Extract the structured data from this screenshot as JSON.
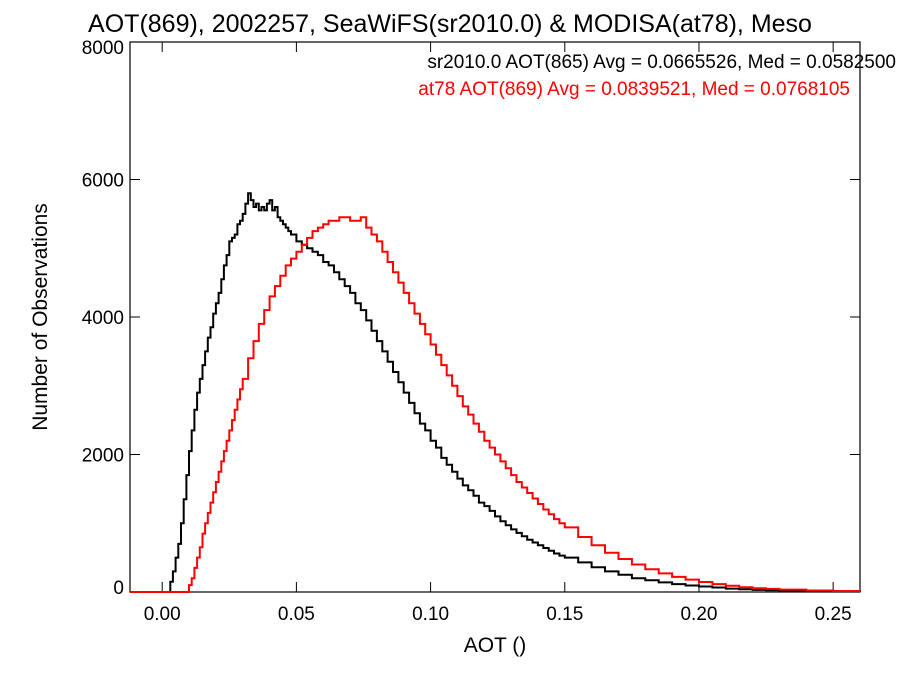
{
  "chart_data": {
    "type": "line",
    "title": "AOT(869), 2002257, SeaWiFS(sr2010.0) & MODISA(at78), Meso",
    "xlabel": "AOT ()",
    "ylabel": "Number of Observations",
    "xlim": [
      -0.012,
      0.26
    ],
    "ylim": [
      0,
      8000
    ],
    "x_ticks": [
      0.0,
      0.05,
      0.1,
      0.15,
      0.2,
      0.25
    ],
    "x_tick_labels": [
      "0.00",
      "0.05",
      "0.10",
      "0.15",
      "0.20",
      "0.25"
    ],
    "y_ticks": [
      0,
      2000,
      4000,
      6000,
      8000
    ],
    "y_tick_labels": [
      "0",
      "2000",
      "4000",
      "6000",
      "8000"
    ],
    "grid": false,
    "legend_position": "top-right",
    "annotations": [
      {
        "text": "sr2010.0 AOT(865) Avg = 0.0665526, Med = 0.0582500",
        "color": "#000000"
      },
      {
        "text": "at78 AOT(869) Avg = 0.0839521, Med = 0.0768105",
        "color": "#ff0000"
      }
    ],
    "step": true,
    "series": [
      {
        "color": "#000000",
        "points": [
          [
            -0.012,
            0
          ],
          [
            0.0,
            0
          ],
          [
            0.002,
            0
          ],
          [
            0.003,
            150
          ],
          [
            0.004,
            300
          ],
          [
            0.005,
            500
          ],
          [
            0.006,
            700
          ],
          [
            0.007,
            1000
          ],
          [
            0.008,
            1350
          ],
          [
            0.009,
            1700
          ],
          [
            0.01,
            2050
          ],
          [
            0.011,
            2350
          ],
          [
            0.012,
            2650
          ],
          [
            0.013,
            2900
          ],
          [
            0.014,
            3100
          ],
          [
            0.015,
            3300
          ],
          [
            0.016,
            3500
          ],
          [
            0.017,
            3700
          ],
          [
            0.018,
            3850
          ],
          [
            0.019,
            4050
          ],
          [
            0.02,
            4200
          ],
          [
            0.021,
            4350
          ],
          [
            0.022,
            4550
          ],
          [
            0.023,
            4750
          ],
          [
            0.024,
            4900
          ],
          [
            0.025,
            5100
          ],
          [
            0.026,
            5150
          ],
          [
            0.027,
            5200
          ],
          [
            0.028,
            5350
          ],
          [
            0.029,
            5400
          ],
          [
            0.03,
            5500
          ],
          [
            0.031,
            5650
          ],
          [
            0.032,
            5800
          ],
          [
            0.033,
            5700
          ],
          [
            0.034,
            5600
          ],
          [
            0.035,
            5650
          ],
          [
            0.036,
            5550
          ],
          [
            0.037,
            5600
          ],
          [
            0.038,
            5550
          ],
          [
            0.039,
            5650
          ],
          [
            0.04,
            5700
          ],
          [
            0.041,
            5550
          ],
          [
            0.042,
            5600
          ],
          [
            0.043,
            5450
          ],
          [
            0.044,
            5400
          ],
          [
            0.045,
            5350
          ],
          [
            0.046,
            5300
          ],
          [
            0.047,
            5250
          ],
          [
            0.048,
            5200
          ],
          [
            0.05,
            5100
          ],
          [
            0.052,
            5050
          ],
          [
            0.054,
            5000
          ],
          [
            0.056,
            4950
          ],
          [
            0.058,
            4900
          ],
          [
            0.06,
            4800
          ],
          [
            0.062,
            4750
          ],
          [
            0.064,
            4650
          ],
          [
            0.066,
            4550
          ],
          [
            0.068,
            4450
          ],
          [
            0.07,
            4350
          ],
          [
            0.072,
            4200
          ],
          [
            0.074,
            4100
          ],
          [
            0.076,
            3950
          ],
          [
            0.078,
            3800
          ],
          [
            0.08,
            3650
          ],
          [
            0.082,
            3500
          ],
          [
            0.084,
            3350
          ],
          [
            0.086,
            3200
          ],
          [
            0.088,
            3050
          ],
          [
            0.09,
            2900
          ],
          [
            0.092,
            2750
          ],
          [
            0.094,
            2600
          ],
          [
            0.096,
            2450
          ],
          [
            0.098,
            2350
          ],
          [
            0.1,
            2200
          ],
          [
            0.102,
            2100
          ],
          [
            0.104,
            1950
          ],
          [
            0.106,
            1850
          ],
          [
            0.108,
            1750
          ],
          [
            0.11,
            1650
          ],
          [
            0.112,
            1550
          ],
          [
            0.114,
            1480
          ],
          [
            0.116,
            1400
          ],
          [
            0.118,
            1300
          ],
          [
            0.12,
            1250
          ],
          [
            0.122,
            1180
          ],
          [
            0.124,
            1100
          ],
          [
            0.126,
            1030
          ],
          [
            0.128,
            970
          ],
          [
            0.13,
            910
          ],
          [
            0.132,
            860
          ],
          [
            0.134,
            810
          ],
          [
            0.136,
            760
          ],
          [
            0.138,
            720
          ],
          [
            0.14,
            680
          ],
          [
            0.142,
            640
          ],
          [
            0.144,
            600
          ],
          [
            0.146,
            560
          ],
          [
            0.148,
            530
          ],
          [
            0.15,
            500
          ],
          [
            0.155,
            430
          ],
          [
            0.16,
            360
          ],
          [
            0.165,
            300
          ],
          [
            0.17,
            250
          ],
          [
            0.175,
            200
          ],
          [
            0.18,
            170
          ],
          [
            0.185,
            140
          ],
          [
            0.19,
            115
          ],
          [
            0.195,
            95
          ],
          [
            0.2,
            80
          ],
          [
            0.205,
            65
          ],
          [
            0.21,
            50
          ],
          [
            0.215,
            40
          ],
          [
            0.22,
            30
          ],
          [
            0.225,
            25
          ],
          [
            0.23,
            20
          ],
          [
            0.24,
            12
          ],
          [
            0.25,
            8
          ],
          [
            0.26,
            5
          ]
        ]
      },
      {
        "color": "#ff0000",
        "points": [
          [
            -0.012,
            0
          ],
          [
            0.0,
            0
          ],
          [
            0.009,
            0
          ],
          [
            0.01,
            100
          ],
          [
            0.011,
            200
          ],
          [
            0.012,
            350
          ],
          [
            0.013,
            500
          ],
          [
            0.014,
            650
          ],
          [
            0.015,
            850
          ],
          [
            0.016,
            1000
          ],
          [
            0.017,
            1150
          ],
          [
            0.018,
            1300
          ],
          [
            0.019,
            1450
          ],
          [
            0.02,
            1600
          ],
          [
            0.021,
            1750
          ],
          [
            0.022,
            1900
          ],
          [
            0.023,
            2050
          ],
          [
            0.024,
            2200
          ],
          [
            0.025,
            2350
          ],
          [
            0.026,
            2500
          ],
          [
            0.027,
            2650
          ],
          [
            0.028,
            2800
          ],
          [
            0.029,
            2950
          ],
          [
            0.03,
            3100
          ],
          [
            0.032,
            3400
          ],
          [
            0.034,
            3650
          ],
          [
            0.036,
            3900
          ],
          [
            0.038,
            4100
          ],
          [
            0.04,
            4300
          ],
          [
            0.042,
            4450
          ],
          [
            0.044,
            4600
          ],
          [
            0.046,
            4750
          ],
          [
            0.048,
            4850
          ],
          [
            0.05,
            4950
          ],
          [
            0.052,
            5050
          ],
          [
            0.054,
            5150
          ],
          [
            0.056,
            5250
          ],
          [
            0.058,
            5300
          ],
          [
            0.06,
            5350
          ],
          [
            0.062,
            5400
          ],
          [
            0.064,
            5400
          ],
          [
            0.066,
            5450
          ],
          [
            0.068,
            5450
          ],
          [
            0.07,
            5400
          ],
          [
            0.072,
            5400
          ],
          [
            0.074,
            5450
          ],
          [
            0.076,
            5300
          ],
          [
            0.078,
            5200
          ],
          [
            0.08,
            5100
          ],
          [
            0.082,
            4950
          ],
          [
            0.084,
            4800
          ],
          [
            0.086,
            4650
          ],
          [
            0.088,
            4500
          ],
          [
            0.09,
            4350
          ],
          [
            0.092,
            4200
          ],
          [
            0.094,
            4050
          ],
          [
            0.096,
            3900
          ],
          [
            0.098,
            3750
          ],
          [
            0.1,
            3600
          ],
          [
            0.102,
            3450
          ],
          [
            0.104,
            3300
          ],
          [
            0.106,
            3150
          ],
          [
            0.108,
            3000
          ],
          [
            0.11,
            2850
          ],
          [
            0.112,
            2700
          ],
          [
            0.114,
            2580
          ],
          [
            0.116,
            2450
          ],
          [
            0.118,
            2330
          ],
          [
            0.12,
            2200
          ],
          [
            0.122,
            2100
          ],
          [
            0.124,
            2000
          ],
          [
            0.126,
            1900
          ],
          [
            0.128,
            1800
          ],
          [
            0.13,
            1700
          ],
          [
            0.132,
            1600
          ],
          [
            0.134,
            1520
          ],
          [
            0.136,
            1440
          ],
          [
            0.138,
            1360
          ],
          [
            0.14,
            1280
          ],
          [
            0.142,
            1200
          ],
          [
            0.144,
            1130
          ],
          [
            0.146,
            1060
          ],
          [
            0.148,
            1000
          ],
          [
            0.15,
            940
          ],
          [
            0.155,
            800
          ],
          [
            0.16,
            680
          ],
          [
            0.165,
            570
          ],
          [
            0.17,
            480
          ],
          [
            0.175,
            400
          ],
          [
            0.18,
            330
          ],
          [
            0.185,
            270
          ],
          [
            0.19,
            220
          ],
          [
            0.195,
            180
          ],
          [
            0.2,
            145
          ],
          [
            0.205,
            115
          ],
          [
            0.21,
            90
          ],
          [
            0.215,
            70
          ],
          [
            0.22,
            55
          ],
          [
            0.225,
            45
          ],
          [
            0.23,
            35
          ],
          [
            0.24,
            22
          ],
          [
            0.25,
            14
          ],
          [
            0.26,
            10
          ]
        ]
      }
    ]
  }
}
